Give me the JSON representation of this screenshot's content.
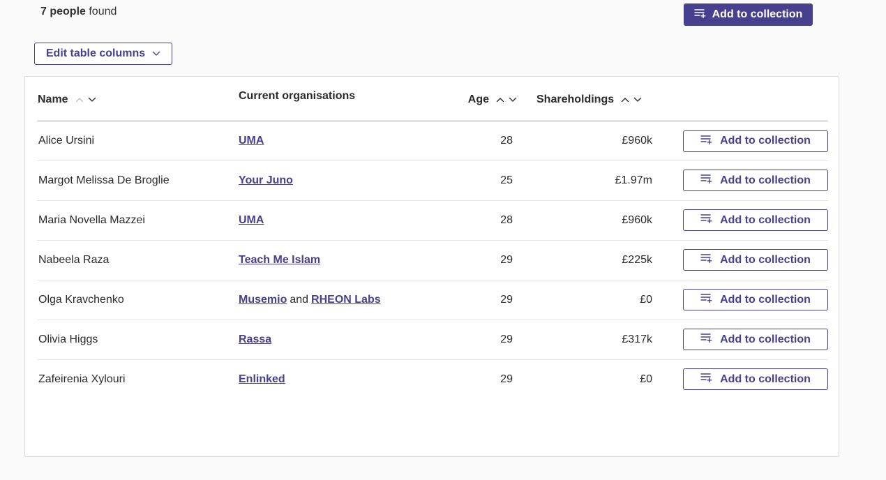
{
  "results": {
    "count": "7 people",
    "suffix": " found"
  },
  "header": {
    "add_to_collection_label": "Add to collection",
    "edit_columns_label": "Edit table columns"
  },
  "table": {
    "columns": {
      "name": "Name",
      "organisations": "Current organisations",
      "age": "Age",
      "shareholdings": "Shareholdings"
    },
    "row_action_label": "Add to collection",
    "rows": [
      {
        "name": "Alice Ursini",
        "orgs": [
          "UMA"
        ],
        "age": "28",
        "shareholdings": "£960k"
      },
      {
        "name": "Margot Melissa De Broglie",
        "orgs": [
          "Your Juno"
        ],
        "age": "25",
        "shareholdings": "£1.97m"
      },
      {
        "name": "Maria Novella Mazzei",
        "orgs": [
          "UMA"
        ],
        "age": "28",
        "shareholdings": "£960k"
      },
      {
        "name": "Nabeela Raza",
        "orgs": [
          "Teach Me Islam"
        ],
        "age": "29",
        "shareholdings": "£225k"
      },
      {
        "name": "Olga Kravchenko",
        "orgs": [
          "Musemio",
          "RHEON Labs"
        ],
        "org_joiner": "and",
        "age": "29",
        "shareholdings": "£0"
      },
      {
        "name": "Olivia Higgs",
        "orgs": [
          "Rassa"
        ],
        "age": "29",
        "shareholdings": "£317k"
      },
      {
        "name": "Zafeirenia Xylouri",
        "orgs": [
          "Enlinked"
        ],
        "age": "29",
        "shareholdings": "£0"
      }
    ]
  },
  "icons": {
    "collection": "list-add-icon",
    "dropdown": "chevron-down-icon",
    "sort_asc": "chevron-up-icon",
    "sort_desc": "chevron-down-icon"
  },
  "colors": {
    "accent": "#47408f",
    "text": "#2b2b2b",
    "border": "#d9d9d9"
  }
}
